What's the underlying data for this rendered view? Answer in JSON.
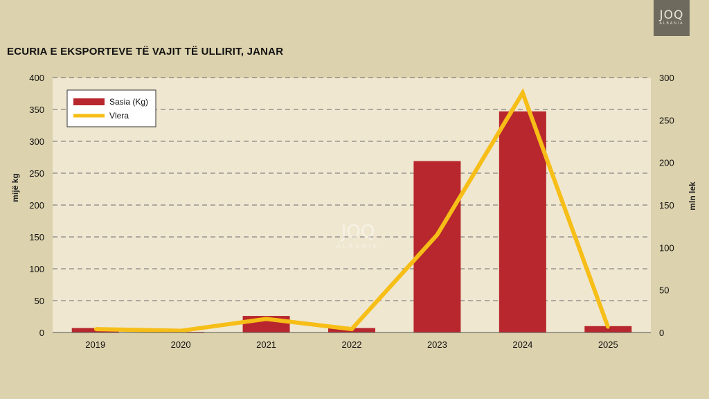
{
  "logo": {
    "main": "JOQ",
    "sub": "ALBANIA"
  },
  "watermark": {
    "main": "JOQ",
    "sub": "ALBANIA"
  },
  "title": "ECURIA E EKSPORTEVE TË VAJIT TË ULLIRIT, JANAR",
  "colors": {
    "background": "#dcd2ad",
    "plot_bg": "#efe7d0",
    "bar": "#b8272e",
    "line": "#f6be17",
    "grid": "#6b6b6b"
  },
  "chart_data": {
    "type": "bar",
    "title": "ECURIA E EKSPORTEVE TË VAJIT TË ULLIRIT, JANAR",
    "categories": [
      "2019",
      "2020",
      "2021",
      "2022",
      "2023",
      "2024",
      "2025"
    ],
    "series": [
      {
        "name": "Sasia (Kg)",
        "type": "bar",
        "axis": "left",
        "values": [
          7,
          1,
          26,
          7,
          269,
          347,
          10
        ]
      },
      {
        "name": "Vlera",
        "type": "line",
        "axis": "right",
        "values": [
          4,
          2,
          16,
          4,
          115,
          282,
          6
        ]
      }
    ],
    "ylabel": "mijë kg",
    "y2label": "mln lek",
    "ylim": [
      0,
      400
    ],
    "y2lim": [
      0,
      300
    ],
    "yticks": [
      0,
      50,
      100,
      150,
      200,
      250,
      300,
      350,
      400
    ],
    "y2ticks": [
      0,
      50,
      100,
      150,
      200,
      250,
      300
    ],
    "grid": "horizontal dashed",
    "legend_position": "top-left"
  }
}
